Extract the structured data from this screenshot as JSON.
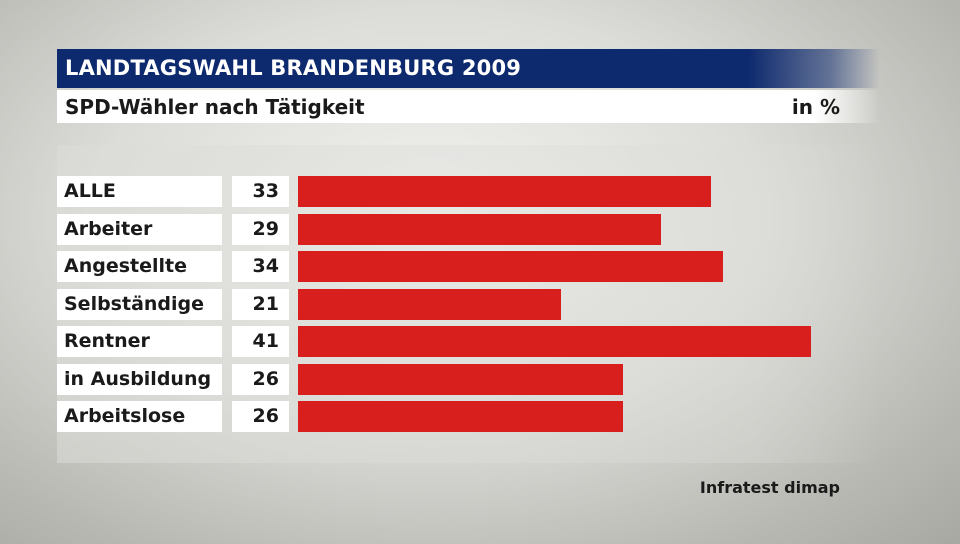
{
  "header": {
    "title": "LANDTAGSWAHL BRANDENBURG 2009",
    "subtitle": "SPD-Wähler nach Tätigkeit",
    "unit": "in %"
  },
  "footer": {
    "source": "Infratest dimap"
  },
  "colors": {
    "title_bar": "#0e2a6e",
    "bar": "#d91e1e"
  },
  "chart_data": {
    "type": "bar",
    "orientation": "horizontal",
    "title": "LANDTAGSWAHL BRANDENBURG 2009",
    "subtitle": "SPD-Wähler nach Tätigkeit",
    "unit": "in %",
    "categories": [
      "ALLE",
      "Arbeiter",
      "Angestellte",
      "Selbständige",
      "Rentner",
      "in Ausbildung",
      "Arbeitslose"
    ],
    "values": [
      33,
      29,
      34,
      21,
      41,
      26,
      26
    ],
    "value_labels": [
      "33",
      "29",
      "34",
      "21",
      "41",
      "26",
      "26"
    ],
    "grid": false,
    "legend": "none"
  }
}
